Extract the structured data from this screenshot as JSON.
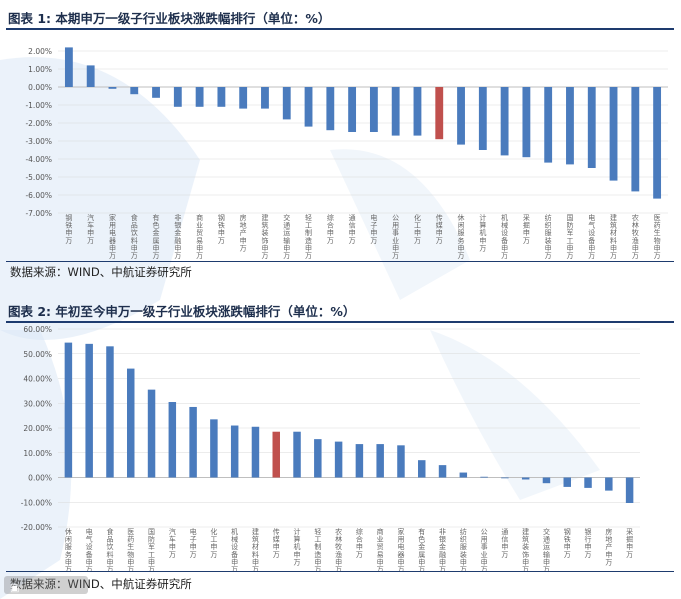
{
  "figures": [
    {
      "title": "图表 1: 本期申万一级子行业板块涨跌幅排行（单位：%）",
      "source": "数据来源：WIND、中航证券研究所"
    },
    {
      "title": "图表 2: 年初至今申万一级子行业板块涨跌幅排行（单位：%）",
      "source": "数据来源：WIND、中航证券研究所"
    }
  ],
  "colors": {
    "bar": "#4a7bbd",
    "highlight": "#c0504d",
    "grid": "#d9d9d9",
    "rule": "#1e3b6e"
  },
  "chart_data": [
    {
      "type": "bar",
      "title": "本期申万一级子行业板块涨跌幅排行",
      "unit": "%",
      "ylim": [
        -7,
        2
      ],
      "yticks": [
        "2.00%",
        "1.00%",
        "0.00%",
        "-1.00%",
        "-2.00%",
        "-3.00%",
        "-4.00%",
        "-5.00%",
        "-6.00%",
        "-7.00%"
      ],
      "ytick_values": [
        2,
        1,
        0,
        -1,
        -2,
        -3,
        -4,
        -5,
        -6,
        -7
      ],
      "categories": [
        "钢铁(申万)",
        "汽车(申万)",
        "家用电器(申万)",
        "食品饮料(申万)",
        "有色金属(申万)",
        "非银金融(申万)",
        "商业贸易(申万)",
        "钢铁(申万)",
        "房地产(申万)",
        "建筑装饰(申万)",
        "交通运输(申万)",
        "轻工制造(申万)",
        "综合(申万)",
        "通信(申万)",
        "电子(申万)",
        "公用事业(申万)",
        "化工(申万)",
        "传媒(申万)",
        "休闲服务(申万)",
        "计算机(申万)",
        "机械设备(申万)",
        "采掘(申万)",
        "纺织服装(申万)",
        "国防军工(申万)",
        "电气设备(申万)",
        "建筑材料(申万)",
        "农林牧渔(申万)",
        "医药生物(申万)"
      ],
      "values": [
        2.2,
        1.2,
        -0.1,
        -0.4,
        -0.6,
        -1.1,
        -1.1,
        -1.1,
        -1.2,
        -1.2,
        -1.8,
        -2.2,
        -2.4,
        -2.5,
        -2.5,
        -2.7,
        -2.7,
        -2.9,
        -3.2,
        -3.5,
        -3.8,
        -3.9,
        -4.2,
        -4.3,
        -4.5,
        -5.2,
        -5.8,
        -6.2
      ],
      "highlight_index": 17,
      "grid": true
    },
    {
      "type": "bar",
      "title": "年初至今申万一级子行业板块涨跌幅排行",
      "unit": "%",
      "ylim": [
        -20,
        60
      ],
      "yticks": [
        "60.00%",
        "50.00%",
        "40.00%",
        "30.00%",
        "20.00%",
        "10.00%",
        "0.00%",
        "-10.00%",
        "-20.00%"
      ],
      "ytick_values": [
        60,
        50,
        40,
        30,
        20,
        10,
        0,
        -10,
        -20
      ],
      "categories": [
        "休闲服务(申万)",
        "电气设备(申万)",
        "食品饮料(申万)",
        "医药生物(申万)",
        "国防军工(申万)",
        "汽车(申万)",
        "电子(申万)",
        "化工(申万)",
        "机械设备(申万)",
        "建筑材料(申万)",
        "传媒(申万)",
        "计算机(申万)",
        "轻工制造(申万)",
        "农林牧渔(申万)",
        "综合(申万)",
        "商业贸易(申万)",
        "家用电器(申万)",
        "有色金属(申万)",
        "非银金融(申万)",
        "纺织服装(申万)",
        "公用事业(申万)",
        "通信(申万)",
        "建筑装饰(申万)",
        "交通运输(申万)",
        "钢铁(申万)",
        "银行(申万)",
        "房地产(申万)",
        "采掘(申万)"
      ],
      "values": [
        54.5,
        54.0,
        53.0,
        44.0,
        35.5,
        30.5,
        28.5,
        23.5,
        21.0,
        20.5,
        18.5,
        18.5,
        15.5,
        14.5,
        13.5,
        13.5,
        13.0,
        7.0,
        5.0,
        2.0,
        0.3,
        0.0,
        -0.8,
        -2.3,
        -3.8,
        -4.2,
        -5.3,
        -10.3
      ],
      "highlight_index": 10,
      "grid": true
    }
  ]
}
